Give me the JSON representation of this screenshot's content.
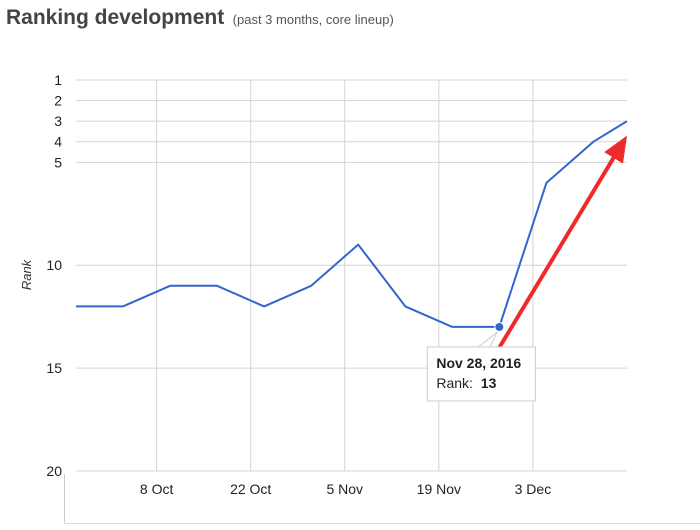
{
  "header": {
    "title": "Ranking development",
    "subtitle": "(past 3 months, core lineup)"
  },
  "chart_data": {
    "type": "line",
    "title": "Ranking development",
    "subtitle": "(past 3 months, core lineup)",
    "xlabel": "",
    "ylabel": "Rank",
    "y_axis_inverted": true,
    "ylim": [
      1,
      20
    ],
    "yticks": [
      1,
      2,
      3,
      4,
      5,
      10,
      15,
      20
    ],
    "xlim": [
      "2016-09-26",
      "2016-12-17"
    ],
    "xticks": [
      {
        "date": "2016-10-08",
        "label": "8 Oct"
      },
      {
        "date": "2016-10-22",
        "label": "22 Oct"
      },
      {
        "date": "2016-11-05",
        "label": "5 Nov"
      },
      {
        "date": "2016-11-19",
        "label": "19 Nov"
      },
      {
        "date": "2016-12-03",
        "label": "3 Dec"
      }
    ],
    "grid": true,
    "series": [
      {
        "color": "#3366cc",
        "x": [
          "2016-09-26",
          "2016-10-03",
          "2016-10-10",
          "2016-10-17",
          "2016-10-24",
          "2016-10-31",
          "2016-11-07",
          "2016-11-14",
          "2016-11-21",
          "2016-11-28",
          "2016-12-05",
          "2016-12-12",
          "2016-12-17"
        ],
        "y": [
          12,
          12,
          11,
          11,
          12,
          11,
          9,
          12,
          13,
          13,
          6,
          4,
          3
        ]
      }
    ],
    "highlight": {
      "series": 0,
      "index": 9,
      "color": "#3366cc"
    },
    "tooltip": {
      "title": "Nov 28, 2016",
      "label": "Rank:",
      "value": "13"
    },
    "annotation_arrow": {
      "color": "#ee2b2b",
      "from": {
        "date": "2016-11-28",
        "rank": 14
      },
      "to": {
        "date": "2016-12-17",
        "rank": 3.7
      }
    }
  }
}
